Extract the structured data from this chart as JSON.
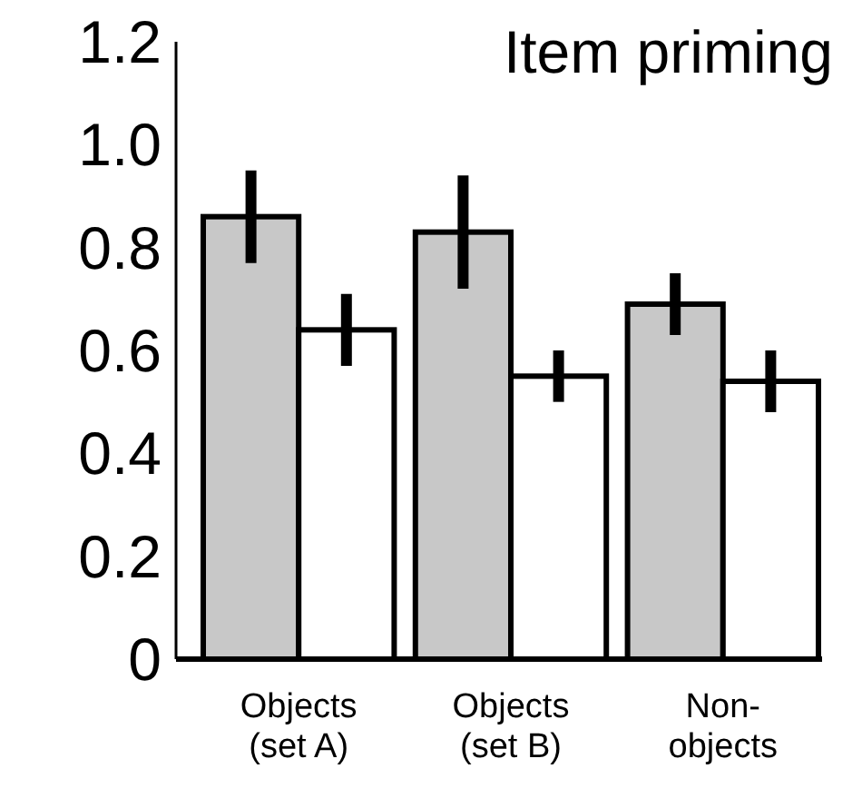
{
  "chart_data": {
    "type": "bar",
    "title": "Item priming",
    "categories": [
      "Objects\n(set A)",
      "Objects\n(set B)",
      "Non-\nobjects"
    ],
    "series": [
      {
        "color": "#c8c8c8",
        "values": [
          0.86,
          0.83,
          0.69
        ],
        "errors": [
          0.09,
          0.11,
          0.06
        ]
      },
      {
        "color": "#ffffff",
        "values": [
          0.64,
          0.55,
          0.54
        ],
        "errors": [
          0.07,
          0.05,
          0.06
        ]
      }
    ],
    "ylim": [
      0,
      1.2
    ],
    "yticks": [
      0,
      {
        "value": 0.2,
        "label": "0.2"
      },
      {
        "value": 0.4,
        "label": "0.4"
      },
      {
        "value": 0.6,
        "label": "0.6"
      },
      {
        "value": 0.8,
        "label": "0.8"
      },
      {
        "value": 1.0,
        "label": "1.0"
      },
      {
        "value": 1.2,
        "label": "1.2"
      }
    ],
    "grid": false
  }
}
